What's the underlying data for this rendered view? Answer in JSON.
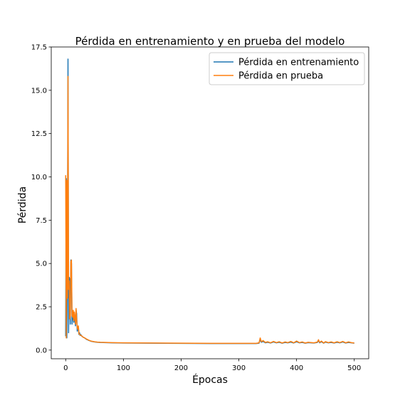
{
  "chart_data": {
    "type": "line",
    "title": "Pérdida en entrenamiento y en prueba del modelo",
    "xlabel": "Épocas",
    "ylabel": "Pérdida",
    "xlim": [
      -25,
      525
    ],
    "ylim": [
      -0.5,
      17.5
    ],
    "xticks": [
      0,
      100,
      200,
      300,
      400,
      500
    ],
    "yticks": [
      0.0,
      2.5,
      5.0,
      7.5,
      10.0,
      12.5,
      15.0,
      17.5
    ],
    "xtick_labels": [
      "0",
      "100",
      "200",
      "300",
      "400",
      "500"
    ],
    "ytick_labels": [
      "0.0",
      "2.5",
      "5.0",
      "7.5",
      "10.0",
      "12.5",
      "15.0",
      "17.5"
    ],
    "grid": false,
    "legend_position": "top-right",
    "series": [
      {
        "name": "Pérdida en entrenamiento",
        "color": "#1f77b4",
        "x": [
          0,
          1,
          2,
          3,
          4,
          5,
          6,
          7,
          8,
          9,
          10,
          11,
          12,
          13,
          14,
          15,
          16,
          17,
          18,
          19,
          20,
          21,
          22,
          23,
          24,
          25,
          26,
          28,
          30,
          33,
          36,
          40,
          45,
          50,
          55,
          60,
          70,
          80,
          100,
          150,
          200,
          250,
          300,
          330,
          335,
          337,
          339,
          342,
          346,
          350,
          355,
          360,
          365,
          370,
          375,
          380,
          385,
          390,
          395,
          400,
          405,
          410,
          415,
          420,
          430,
          436,
          438,
          440,
          443,
          447,
          450,
          455,
          460,
          465,
          470,
          475,
          480,
          485,
          490,
          495,
          500
        ],
        "y": [
          0.8,
          9.9,
          0.7,
          4.5,
          16.8,
          1.0,
          4.2,
          4.1,
          1.5,
          5.2,
          5.0,
          1.5,
          2.2,
          1.8,
          1.6,
          2.1,
          1.7,
          1.4,
          2.3,
          2.1,
          1.1,
          1.3,
          1.2,
          0.9,
          1.0,
          0.85,
          0.9,
          0.8,
          0.75,
          0.7,
          0.62,
          0.56,
          0.5,
          0.47,
          0.45,
          0.44,
          0.43,
          0.42,
          0.41,
          0.4,
          0.39,
          0.38,
          0.38,
          0.38,
          0.4,
          0.6,
          0.45,
          0.5,
          0.42,
          0.45,
          0.41,
          0.47,
          0.42,
          0.45,
          0.4,
          0.44,
          0.42,
          0.46,
          0.41,
          0.48,
          0.42,
          0.44,
          0.4,
          0.43,
          0.41,
          0.44,
          0.55,
          0.42,
          0.48,
          0.4,
          0.46,
          0.42,
          0.44,
          0.41,
          0.45,
          0.42,
          0.47,
          0.41,
          0.44,
          0.42,
          0.4
        ]
      },
      {
        "name": "Pérdida en prueba",
        "color": "#ff7f0e",
        "x": [
          0,
          1,
          2,
          3,
          4,
          5,
          6,
          7,
          8,
          9,
          10,
          11,
          12,
          13,
          14,
          15,
          16,
          17,
          18,
          19,
          20,
          21,
          22,
          23,
          24,
          25,
          26,
          28,
          30,
          33,
          36,
          40,
          45,
          50,
          55,
          60,
          70,
          80,
          100,
          150,
          200,
          250,
          300,
          330,
          335,
          337,
          339,
          342,
          346,
          350,
          355,
          360,
          365,
          370,
          375,
          380,
          385,
          390,
          395,
          400,
          405,
          410,
          415,
          420,
          430,
          436,
          438,
          440,
          443,
          447,
          450,
          455,
          460,
          465,
          470,
          475,
          480,
          485,
          490,
          495,
          500
        ],
        "y": [
          10.1,
          0.7,
          9.8,
          3.0,
          15.8,
          3.5,
          4.0,
          1.8,
          2.0,
          5.1,
          5.2,
          2.0,
          1.9,
          2.3,
          1.7,
          2.2,
          1.9,
          1.5,
          2.4,
          1.8,
          1.3,
          1.2,
          1.4,
          0.95,
          0.9,
          0.9,
          0.85,
          0.82,
          0.75,
          0.7,
          0.64,
          0.57,
          0.51,
          0.48,
          0.46,
          0.45,
          0.44,
          0.43,
          0.42,
          0.41,
          0.4,
          0.39,
          0.39,
          0.39,
          0.42,
          0.7,
          0.48,
          0.55,
          0.44,
          0.48,
          0.42,
          0.5,
          0.43,
          0.48,
          0.41,
          0.47,
          0.43,
          0.5,
          0.42,
          0.52,
          0.43,
          0.47,
          0.41,
          0.45,
          0.42,
          0.46,
          0.6,
          0.44,
          0.52,
          0.41,
          0.49,
          0.43,
          0.47,
          0.42,
          0.48,
          0.43,
          0.5,
          0.42,
          0.47,
          0.43,
          0.41
        ]
      }
    ]
  }
}
